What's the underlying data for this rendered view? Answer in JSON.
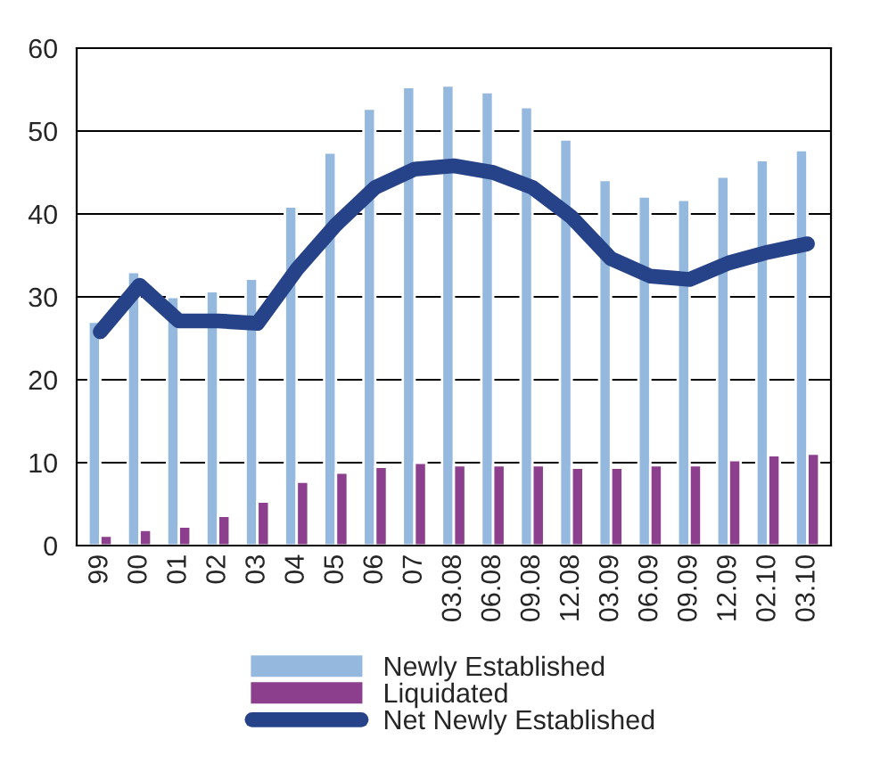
{
  "chart_data": {
    "type": "bar",
    "categories": [
      "99",
      "00",
      "01",
      "02",
      "03",
      "04",
      "05",
      "06",
      "07",
      "03.08",
      "06.08",
      "09.08",
      "12.08",
      "03.09",
      "06.09",
      "09.09",
      "12.09",
      "02.10",
      "03.10"
    ],
    "series": [
      {
        "name": "Newly Established",
        "color": "#95b8de",
        "values": [
          27,
          33,
          30,
          30.7,
          32.2,
          40.9,
          47.4,
          52.7,
          55.3,
          55.5,
          54.7,
          52.9,
          49,
          44.1,
          42.1,
          41.7,
          44.5,
          46.5,
          47.7
        ]
      },
      {
        "name": "Liquidated",
        "color": "#8b3f8c",
        "values": [
          1.2,
          1.9,
          2.3,
          3.6,
          5.3,
          7.7,
          8.8,
          9.5,
          10,
          9.7,
          9.7,
          9.7,
          9.4,
          9.4,
          9.7,
          9.7,
          10.3,
          10.9,
          11.1
        ]
      },
      {
        "name": "Net Newly Established",
        "color": "#264389",
        "type": "line",
        "values": [
          25.8,
          31.4,
          27.1,
          27.1,
          26.8,
          33.3,
          38.7,
          43.2,
          45.4,
          45.8,
          45.0,
          43.2,
          39.6,
          34.6,
          32.5,
          32.1,
          34.1,
          35.4,
          36.4
        ]
      }
    ],
    "ylim": [
      0,
      60
    ],
    "yticks": [
      0,
      10,
      20,
      30,
      40,
      50,
      60
    ],
    "grid": "y",
    "legend": "bottom"
  }
}
